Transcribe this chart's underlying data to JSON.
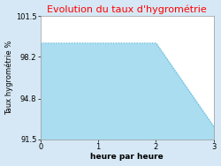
{
  "title": "Evolution du taux d'hygrométrie",
  "title_color": "#ff0000",
  "xlabel": "heure par heure",
  "ylabel": "Taux hygrométrie %",
  "x": [
    0,
    1,
    2,
    3
  ],
  "y": [
    99.3,
    99.3,
    99.3,
    92.5
  ],
  "ylim": [
    91.5,
    101.5
  ],
  "xlim": [
    0,
    3
  ],
  "yticks": [
    91.5,
    94.8,
    98.2,
    101.5
  ],
  "xticks": [
    0,
    1,
    2,
    3
  ],
  "line_color": "#5ab4d6",
  "fill_color": "#aaddf0",
  "fill_alpha": 1.0,
  "background_color": "#d6e8f5",
  "axes_background": "#ffffff",
  "grid_color": "#ccddee",
  "title_fontsize": 8,
  "label_fontsize": 6.5,
  "tick_fontsize": 6,
  "ylabel_fontsize": 6
}
